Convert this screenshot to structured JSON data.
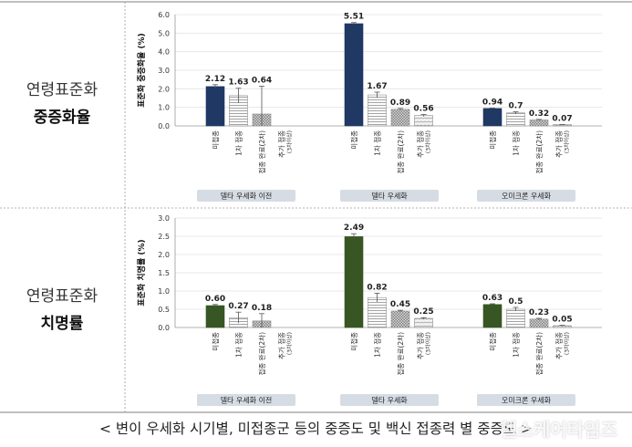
{
  "rows": [
    {
      "label_line1": "연령표준화",
      "label_line2": "중증화율"
    },
    {
      "label_line1": "연령표준화",
      "label_line2": "치명률"
    }
  ],
  "caption": "< 변이 우세화 시기별, 미접종군 등의 중증도 및 백신 접종력 별 중증도 >",
  "watermark": "헬스케어타임즈",
  "chart_data": [
    {
      "type": "bar",
      "ylabel": "표준화 중증화율 (%)",
      "ylim": [
        0,
        6
      ],
      "yticks": [
        "0.0",
        "1.0",
        "2.0",
        "3.0",
        "4.0",
        "5.0",
        "6.0"
      ],
      "categories": [
        "미접종",
        "1차 접종",
        "접종 완료(2차)",
        "추가 접종(3차이상)"
      ],
      "category_lines": [
        [
          "미접종"
        ],
        [
          "1차 접종"
        ],
        [
          "접종 완료(2차)"
        ],
        [
          "추가 접종",
          "(3차이상)"
        ]
      ],
      "groups": [
        {
          "name": "델타 우세화 이전",
          "values": [
            2.12,
            1.63,
            0.64,
            0
          ],
          "labels": [
            "2.12",
            "1.63",
            "0.64",
            ""
          ],
          "err": [
            0.1,
            0.4,
            1.5,
            0
          ]
        },
        {
          "name": "델타 우세화",
          "values": [
            5.51,
            1.67,
            0.89,
            0.56
          ],
          "labels": [
            "5.51",
            "1.67",
            "0.89",
            "0.56"
          ],
          "err": [
            0.06,
            0.15,
            0.05,
            0.05
          ]
        },
        {
          "name": "오미크론 우세화",
          "values": [
            0.94,
            0.7,
            0.32,
            0.07
          ],
          "labels": [
            "0.94",
            "0.7",
            "0.32",
            "0.07"
          ],
          "err": [
            0.02,
            0.06,
            0.03,
            0.01
          ]
        }
      ],
      "colors": {
        "solid": "#1f3864"
      }
    },
    {
      "type": "bar",
      "ylabel": "표준화 치명률 (%)",
      "ylim": [
        0,
        3
      ],
      "yticks": [
        "0.0",
        "0.5",
        "1.0",
        "1.5",
        "2.0",
        "2.5",
        "3.0"
      ],
      "categories": [
        "미접종",
        "1차 접종",
        "접종 완료(2차)",
        "추가 접종(3차이상)"
      ],
      "category_lines": [
        [
          "미접종"
        ],
        [
          "1차 접종"
        ],
        [
          "접종 완료(2차)"
        ],
        [
          "추가 접종",
          "(3차이상)"
        ]
      ],
      "groups": [
        {
          "name": "델타 우세화 이전",
          "values": [
            0.6,
            0.27,
            0.18,
            0
          ],
          "labels": [
            "0.60",
            "0.27",
            "0.18",
            ""
          ],
          "err": [
            0.03,
            0.15,
            0.2,
            0
          ]
        },
        {
          "name": "델타 우세화",
          "values": [
            2.49,
            0.82,
            0.45,
            0.25
          ],
          "labels": [
            "2.49",
            "0.82",
            "0.45",
            "0.25"
          ],
          "err": [
            0.08,
            0.12,
            0.02,
            0.02
          ]
        },
        {
          "name": "오미크론 우세화",
          "values": [
            0.63,
            0.5,
            0.23,
            0.05
          ],
          "labels": [
            "0.63",
            "0.5",
            "0.23",
            "0.05"
          ],
          "err": [
            0.02,
            0.05,
            0.02,
            0.01
          ]
        }
      ],
      "colors": {
        "solid": "#375623"
      }
    }
  ]
}
